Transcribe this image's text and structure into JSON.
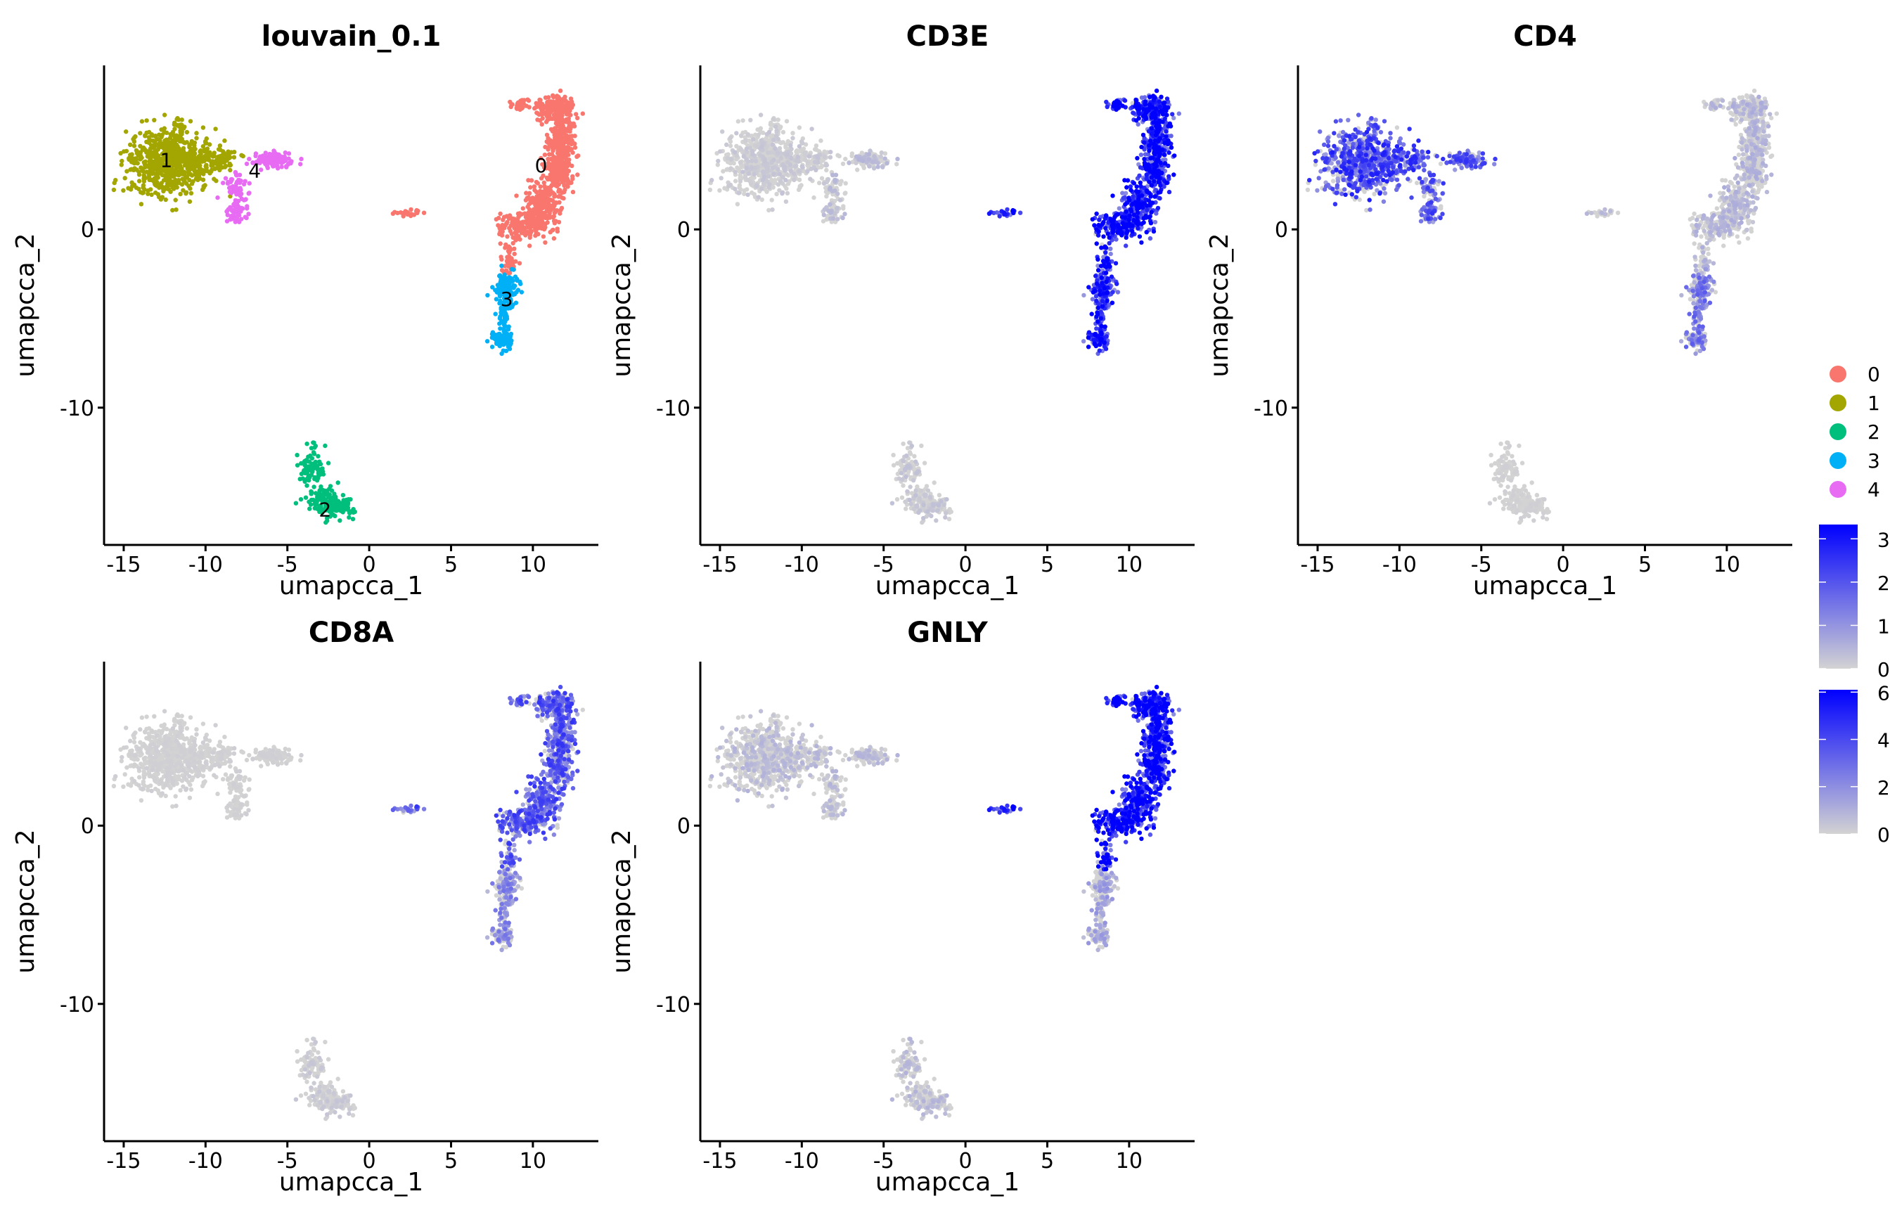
{
  "chart_data": [
    {
      "type": "scatter",
      "title": "louvain_0.1",
      "xlabel": "umapcca_1",
      "ylabel": "umapcca_2",
      "xlim": [
        -16.2,
        14.0
      ],
      "ylim": [
        -17.7,
        9.2
      ],
      "xticks": [
        "-15",
        "-10",
        "-5",
        "0",
        "5",
        "10"
      ],
      "yticks": [
        "0",
        "-10"
      ],
      "color_by": "cluster",
      "clusters": [
        {
          "name": "0",
          "color": "#F8766D",
          "label_pos": [
            10.5,
            3.6
          ]
        },
        {
          "name": "1",
          "color": "#A3A500",
          "label_pos": [
            -12.4,
            3.9
          ]
        },
        {
          "name": "2",
          "color": "#00BF7D",
          "label_pos": [
            -2.7,
            -15.7
          ]
        },
        {
          "name": "3",
          "color": "#00B0F6",
          "label_pos": [
            8.4,
            -3.9
          ]
        },
        {
          "name": "4",
          "color": "#E76BF3",
          "label_pos": [
            -7.0,
            3.3
          ]
        }
      ]
    },
    {
      "type": "scatter",
      "title": "CD3E",
      "xlabel": "umapcca_1",
      "ylabel": "umapcca_2",
      "xlim": [
        -16.2,
        14.0
      ],
      "ylim": [
        -17.7,
        9.2
      ],
      "xticks": [
        "-15",
        "-10",
        "-5",
        "0",
        "5",
        "10"
      ],
      "yticks": [
        "0",
        "-10"
      ],
      "color_by": "expression",
      "colorbar": 0,
      "cluster_mean_expression": {
        "0": 2.6,
        "1": 0.15,
        "2": 0.2,
        "3": 2.3,
        "4": 0.3
      }
    },
    {
      "type": "scatter",
      "title": "CD4",
      "xlabel": "umapcca_1",
      "ylabel": "umapcca_2",
      "xlim": [
        -16.2,
        14.0
      ],
      "ylim": [
        -17.7,
        9.2
      ],
      "xticks": [
        "-15",
        "-10",
        "-5",
        "0",
        "5",
        "10"
      ],
      "yticks": [
        "0",
        "-10"
      ],
      "color_by": "expression",
      "colorbar": 0,
      "cluster_mean_expression": {
        "0": 0.4,
        "1": 1.8,
        "2": 0.05,
        "3": 1.2,
        "4": 1.6
      }
    },
    {
      "type": "scatter",
      "title": "CD8A",
      "xlabel": "umapcca_1",
      "ylabel": "umapcca_2",
      "xlim": [
        -16.2,
        14.0
      ],
      "ylim": [
        -17.7,
        9.2
      ],
      "xticks": [
        "-15",
        "-10",
        "-5",
        "0",
        "5",
        "10"
      ],
      "yticks": [
        "0",
        "-10"
      ],
      "color_by": "expression",
      "colorbar": 0,
      "cluster_mean_expression": {
        "0": 1.6,
        "1": 0.05,
        "2": 0.15,
        "3": 1.0,
        "4": 0.05
      }
    },
    {
      "type": "scatter",
      "title": "GNLY",
      "xlabel": "umapcca_1",
      "ylabel": "umapcca_2",
      "xlim": [
        -16.2,
        14.0
      ],
      "ylim": [
        -17.7,
        9.2
      ],
      "xticks": [
        "-15",
        "-10",
        "-5",
        "0",
        "5",
        "10"
      ],
      "yticks": [
        "0",
        "-10"
      ],
      "color_by": "expression",
      "colorbar": 1,
      "cluster_mean_expression": {
        "0": 4.8,
        "1": 0.6,
        "2": 0.6,
        "3": 1.2,
        "4": 0.6
      }
    }
  ],
  "legend": {
    "placement": "right",
    "clusters": [
      "0",
      "1",
      "2",
      "3",
      "4"
    ],
    "colorbars": [
      {
        "low_color": "#D3D3D3",
        "high_color": "#0000FF",
        "max": 3.33,
        "ticks": [
          "0",
          "1",
          "2",
          "3"
        ]
      },
      {
        "low_color": "#D3D3D3",
        "high_color": "#0000FF",
        "max": 6.1,
        "ticks": [
          "0",
          "2",
          "4",
          "6"
        ]
      }
    ]
  }
}
